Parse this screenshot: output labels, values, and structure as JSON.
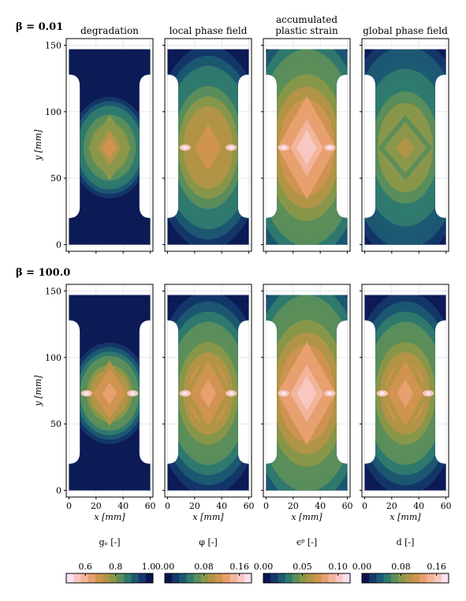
{
  "figure": {
    "row_labels": [
      "β = 0.01",
      "β = 100.0"
    ],
    "column_titles": [
      [
        "degradation"
      ],
      [
        "local phase field"
      ],
      [
        "accumulated",
        "plastic strain"
      ],
      [
        "global phase field"
      ]
    ],
    "x_axis_label": "x [mm]",
    "y_axis_label": "y [mm]",
    "x_ticks": [
      "0",
      "20",
      "40",
      "60"
    ],
    "y_ticks": [
      "0",
      "50",
      "100",
      "150"
    ],
    "colorbars": [
      {
        "label": "gₑ [-]",
        "ticks": [
          "0.6",
          "0.8",
          "1.0"
        ],
        "reversed": true
      },
      {
        "label": "φ [-]",
        "ticks": [
          "0.00",
          "0.08",
          "0.16"
        ],
        "reversed": false
      },
      {
        "label": "ϵᵖ [-]",
        "ticks": [
          "0.00",
          "0.05",
          "0.10"
        ],
        "reversed": false
      },
      {
        "label": "d [-]",
        "ticks": [
          "0.00",
          "0.08",
          "0.16"
        ],
        "reversed": false
      }
    ],
    "colors": {
      "background_field": "#0c1a55",
      "colormap": [
        "#0a1450",
        "#14386a",
        "#1c5a72",
        "#2f7a6e",
        "#5c8e5a",
        "#8b974a",
        "#b39446",
        "#d09450",
        "#e8a070",
        "#f2b49a",
        "#f8c8c0",
        "#fde0f0"
      ]
    }
  },
  "chart_data": [
    {
      "type": "heatmap",
      "row": "β = 0.01",
      "title": "degradation",
      "x_range": [
        0,
        60
      ],
      "y_range": [
        0,
        150
      ],
      "colorbar_ticks": [
        0.6,
        0.8,
        1.0
      ],
      "grid": true
    },
    {
      "type": "heatmap",
      "row": "β = 0.01",
      "title": "local phase field",
      "x_range": [
        0,
        60
      ],
      "y_range": [
        0,
        150
      ],
      "colorbar_ticks": [
        0.0,
        0.08,
        0.16
      ],
      "grid": true
    },
    {
      "type": "heatmap",
      "row": "β = 0.01",
      "title": "accumulated plastic strain",
      "x_range": [
        0,
        60
      ],
      "y_range": [
        0,
        150
      ],
      "colorbar_ticks": [
        0.0,
        0.05,
        0.1
      ],
      "grid": true
    },
    {
      "type": "heatmap",
      "row": "β = 0.01",
      "title": "global phase field",
      "x_range": [
        0,
        60
      ],
      "y_range": [
        0,
        150
      ],
      "colorbar_ticks": [
        0.0,
        0.08,
        0.16
      ],
      "grid": true
    },
    {
      "type": "heatmap",
      "row": "β = 100.0",
      "title": "degradation",
      "x_range": [
        0,
        60
      ],
      "y_range": [
        0,
        150
      ],
      "colorbar_ticks": [
        0.6,
        0.8,
        1.0
      ],
      "grid": true
    },
    {
      "type": "heatmap",
      "row": "β = 100.0",
      "title": "local phase field",
      "x_range": [
        0,
        60
      ],
      "y_range": [
        0,
        150
      ],
      "colorbar_ticks": [
        0.0,
        0.08,
        0.16
      ],
      "grid": true
    },
    {
      "type": "heatmap",
      "row": "β = 100.0",
      "title": "accumulated plastic strain",
      "x_range": [
        0,
        60
      ],
      "y_range": [
        0,
        150
      ],
      "colorbar_ticks": [
        0.0,
        0.05,
        0.1
      ],
      "grid": true
    },
    {
      "type": "heatmap",
      "row": "β = 100.0",
      "title": "global phase field",
      "x_range": [
        0,
        60
      ],
      "y_range": [
        0,
        150
      ],
      "colorbar_ticks": [
        0.0,
        0.08,
        0.16
      ],
      "grid": true
    }
  ]
}
